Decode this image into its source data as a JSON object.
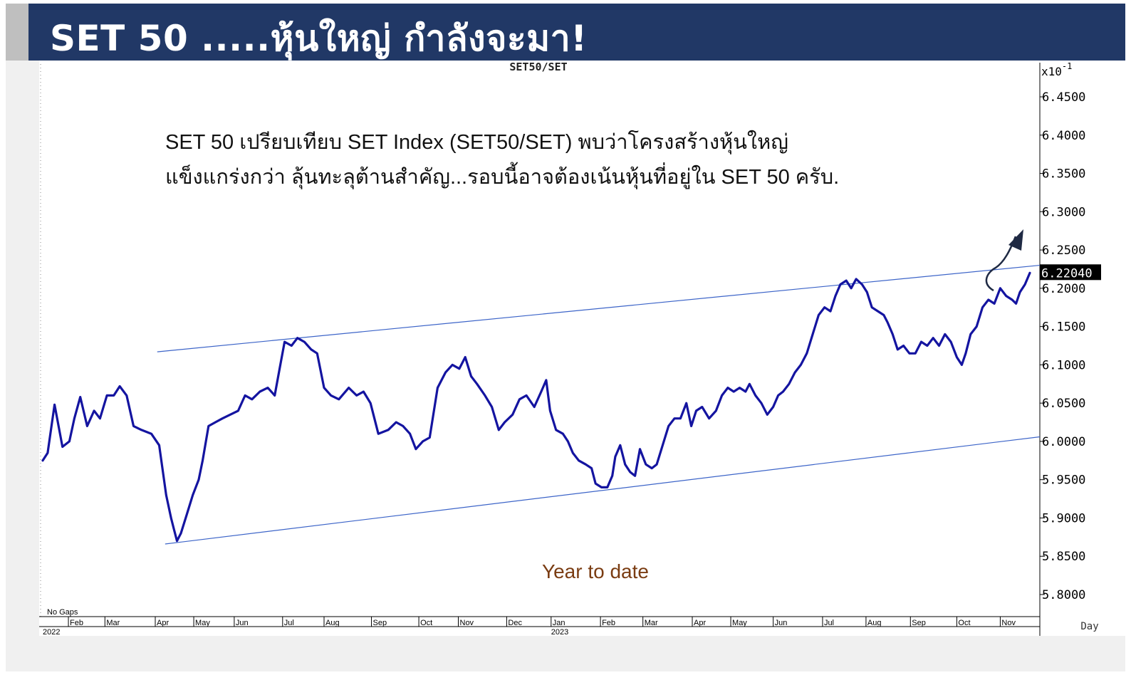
{
  "banner": {
    "title": "SET 50 .....หุ้นใหญ่ กำลังจะมา!",
    "color": "#213866"
  },
  "annotation": {
    "line1": "SET 50 เปรียบเทียบ SET Index (SET50/SET) พบว่าโครงสร้างหุ้นใหญ่",
    "line2": "แข็งแกร่งกว่า ลุ้นทะลุต้านสำคัญ...รอบนี้อาจต้องเน้นหุ้นที่อยู่ใน SET 50 ครับ.",
    "period_label": "Year to date"
  },
  "chart_data": {
    "type": "line",
    "title": "SET50/SET",
    "scale_label": "x10",
    "scale_exponent": "-1",
    "frequency_label": "Day",
    "gaps_label": "No Gaps",
    "last_value_label": "6.22040",
    "ylim": [
      5.77,
      6.48
    ],
    "y_ticks": [
      "6.4500",
      "6.4000",
      "6.3500",
      "6.3000",
      "6.2500",
      "6.2000",
      "6.1500",
      "6.1000",
      "6.0500",
      "6.0000",
      "5.9500",
      "5.9000",
      "5.8500",
      "5.8000"
    ],
    "x_ticks": [
      {
        "label": "Feb",
        "t": 0.026
      },
      {
        "label": "Mar",
        "t": 0.063
      },
      {
        "label": "Apr",
        "t": 0.114
      },
      {
        "label": "May",
        "t": 0.153
      },
      {
        "label": "Jun",
        "t": 0.194
      },
      {
        "label": "Jul",
        "t": 0.243
      },
      {
        "label": "Aug",
        "t": 0.285
      },
      {
        "label": "Sep",
        "t": 0.333
      },
      {
        "label": "Oct",
        "t": 0.381
      },
      {
        "label": "Nov",
        "t": 0.421
      },
      {
        "label": "Dec",
        "t": 0.47
      },
      {
        "label": "Jan",
        "t": 0.515
      },
      {
        "label": "Feb",
        "t": 0.565
      },
      {
        "label": "Mar",
        "t": 0.608
      },
      {
        "label": "Apr",
        "t": 0.658
      },
      {
        "label": "May",
        "t": 0.697
      },
      {
        "label": "Jun",
        "t": 0.74
      },
      {
        "label": "Jul",
        "t": 0.79
      },
      {
        "label": "Aug",
        "t": 0.834
      },
      {
        "label": "Sep",
        "t": 0.879
      },
      {
        "label": "Oct",
        "t": 0.926
      },
      {
        "label": "Nov",
        "t": 0.97
      }
    ],
    "year_labels": [
      {
        "label": "2022",
        "t": 0.0
      },
      {
        "label": "2023",
        "t": 0.515
      }
    ],
    "series": [
      {
        "color": "#1414a0",
        "points": [
          [
            0.0,
            5.975
          ],
          [
            0.005,
            5.985
          ],
          [
            0.012,
            6.048
          ],
          [
            0.02,
            5.993
          ],
          [
            0.027,
            6.0
          ],
          [
            0.032,
            6.03
          ],
          [
            0.038,
            6.058
          ],
          [
            0.045,
            6.02
          ],
          [
            0.052,
            6.04
          ],
          [
            0.058,
            6.03
          ],
          [
            0.065,
            6.06
          ],
          [
            0.072,
            6.06
          ],
          [
            0.078,
            6.072
          ],
          [
            0.085,
            6.06
          ],
          [
            0.092,
            6.02
          ],
          [
            0.1,
            6.015
          ],
          [
            0.11,
            6.01
          ],
          [
            0.118,
            5.995
          ],
          [
            0.125,
            5.93
          ],
          [
            0.13,
            5.9
          ],
          [
            0.133,
            5.885
          ],
          [
            0.136,
            5.87
          ],
          [
            0.14,
            5.88
          ],
          [
            0.146,
            5.905
          ],
          [
            0.152,
            5.93
          ],
          [
            0.158,
            5.95
          ],
          [
            0.162,
            5.975
          ],
          [
            0.168,
            6.02
          ],
          [
            0.175,
            6.025
          ],
          [
            0.182,
            6.03
          ],
          [
            0.19,
            6.035
          ],
          [
            0.198,
            6.04
          ],
          [
            0.205,
            6.06
          ],
          [
            0.212,
            6.055
          ],
          [
            0.22,
            6.065
          ],
          [
            0.228,
            6.07
          ],
          [
            0.235,
            6.06
          ],
          [
            0.24,
            6.095
          ],
          [
            0.245,
            6.13
          ],
          [
            0.252,
            6.125
          ],
          [
            0.258,
            6.135
          ],
          [
            0.265,
            6.13
          ],
          [
            0.272,
            6.12
          ],
          [
            0.278,
            6.115
          ],
          [
            0.285,
            6.07
          ],
          [
            0.292,
            6.06
          ],
          [
            0.3,
            6.055
          ],
          [
            0.31,
            6.07
          ],
          [
            0.318,
            6.06
          ],
          [
            0.325,
            6.065
          ],
          [
            0.332,
            6.05
          ],
          [
            0.34,
            6.01
          ],
          [
            0.35,
            6.015
          ],
          [
            0.358,
            6.025
          ],
          [
            0.365,
            6.02
          ],
          [
            0.372,
            6.01
          ],
          [
            0.378,
            5.99
          ],
          [
            0.385,
            6.0
          ],
          [
            0.392,
            6.005
          ],
          [
            0.4,
            6.07
          ],
          [
            0.408,
            6.09
          ],
          [
            0.415,
            6.1
          ],
          [
            0.422,
            6.095
          ],
          [
            0.428,
            6.11
          ],
          [
            0.434,
            6.085
          ],
          [
            0.44,
            6.075
          ],
          [
            0.448,
            6.06
          ],
          [
            0.455,
            6.045
          ],
          [
            0.462,
            6.015
          ],
          [
            0.468,
            6.025
          ],
          [
            0.476,
            6.035
          ],
          [
            0.483,
            6.055
          ],
          [
            0.49,
            6.06
          ],
          [
            0.498,
            6.045
          ],
          [
            0.505,
            6.065
          ],
          [
            0.51,
            6.08
          ],
          [
            0.514,
            6.04
          ],
          [
            0.52,
            6.015
          ],
          [
            0.527,
            6.01
          ],
          [
            0.532,
            6.0
          ],
          [
            0.537,
            5.985
          ],
          [
            0.543,
            5.975
          ],
          [
            0.55,
            5.97
          ],
          [
            0.556,
            5.965
          ],
          [
            0.56,
            5.945
          ],
          [
            0.566,
            5.94
          ],
          [
            0.572,
            5.94
          ],
          [
            0.577,
            5.955
          ],
          [
            0.58,
            5.98
          ],
          [
            0.585,
            5.995
          ],
          [
            0.59,
            5.97
          ],
          [
            0.595,
            5.96
          ],
          [
            0.6,
            5.955
          ],
          [
            0.605,
            5.99
          ],
          [
            0.611,
            5.97
          ],
          [
            0.617,
            5.965
          ],
          [
            0.622,
            5.97
          ],
          [
            0.628,
            5.995
          ],
          [
            0.634,
            6.02
          ],
          [
            0.64,
            6.03
          ],
          [
            0.646,
            6.03
          ],
          [
            0.652,
            6.05
          ],
          [
            0.657,
            6.02
          ],
          [
            0.662,
            6.04
          ],
          [
            0.668,
            6.045
          ],
          [
            0.675,
            6.03
          ],
          [
            0.682,
            6.04
          ],
          [
            0.688,
            6.06
          ],
          [
            0.694,
            6.07
          ],
          [
            0.7,
            6.065
          ],
          [
            0.706,
            6.07
          ],
          [
            0.712,
            6.065
          ],
          [
            0.716,
            6.075
          ],
          [
            0.722,
            6.06
          ],
          [
            0.728,
            6.05
          ],
          [
            0.734,
            6.035
          ],
          [
            0.74,
            6.045
          ],
          [
            0.745,
            6.06
          ],
          [
            0.75,
            6.065
          ],
          [
            0.756,
            6.075
          ],
          [
            0.762,
            6.09
          ],
          [
            0.768,
            6.1
          ],
          [
            0.774,
            6.115
          ],
          [
            0.78,
            6.14
          ],
          [
            0.786,
            6.165
          ],
          [
            0.792,
            6.175
          ],
          [
            0.798,
            6.17
          ],
          [
            0.803,
            6.19
          ],
          [
            0.808,
            6.205
          ],
          [
            0.814,
            6.21
          ],
          [
            0.819,
            6.2
          ],
          [
            0.824,
            6.212
          ],
          [
            0.83,
            6.205
          ],
          [
            0.835,
            6.195
          ],
          [
            0.84,
            6.175
          ],
          [
            0.846,
            6.17
          ],
          [
            0.852,
            6.165
          ],
          [
            0.856,
            6.155
          ],
          [
            0.861,
            6.14
          ],
          [
            0.866,
            6.12
          ],
          [
            0.872,
            6.125
          ],
          [
            0.878,
            6.115
          ],
          [
            0.884,
            6.115
          ],
          [
            0.89,
            6.13
          ],
          [
            0.896,
            6.125
          ],
          [
            0.902,
            6.135
          ],
          [
            0.908,
            6.125
          ],
          [
            0.914,
            6.14
          ],
          [
            0.92,
            6.13
          ],
          [
            0.926,
            6.11
          ],
          [
            0.931,
            6.1
          ],
          [
            0.935,
            6.115
          ],
          [
            0.94,
            6.14
          ],
          [
            0.946,
            6.15
          ],
          [
            0.952,
            6.175
          ],
          [
            0.958,
            6.185
          ],
          [
            0.964,
            6.18
          ],
          [
            0.97,
            6.2
          ],
          [
            0.976,
            6.19
          ],
          [
            0.982,
            6.185
          ],
          [
            0.986,
            6.18
          ],
          [
            0.99,
            6.195
          ],
          [
            0.995,
            6.205
          ],
          [
            1.0,
            6.22
          ]
        ]
      }
    ],
    "channel": {
      "color": "#3c64c8",
      "lines": [
        {
          "t0": 0.116,
          "v0": 6.117,
          "t1": 1.0,
          "v1": 6.23
        },
        {
          "t0": 0.124,
          "v0": 5.866,
          "t1": 1.0,
          "v1": 6.006
        }
      ]
    }
  }
}
